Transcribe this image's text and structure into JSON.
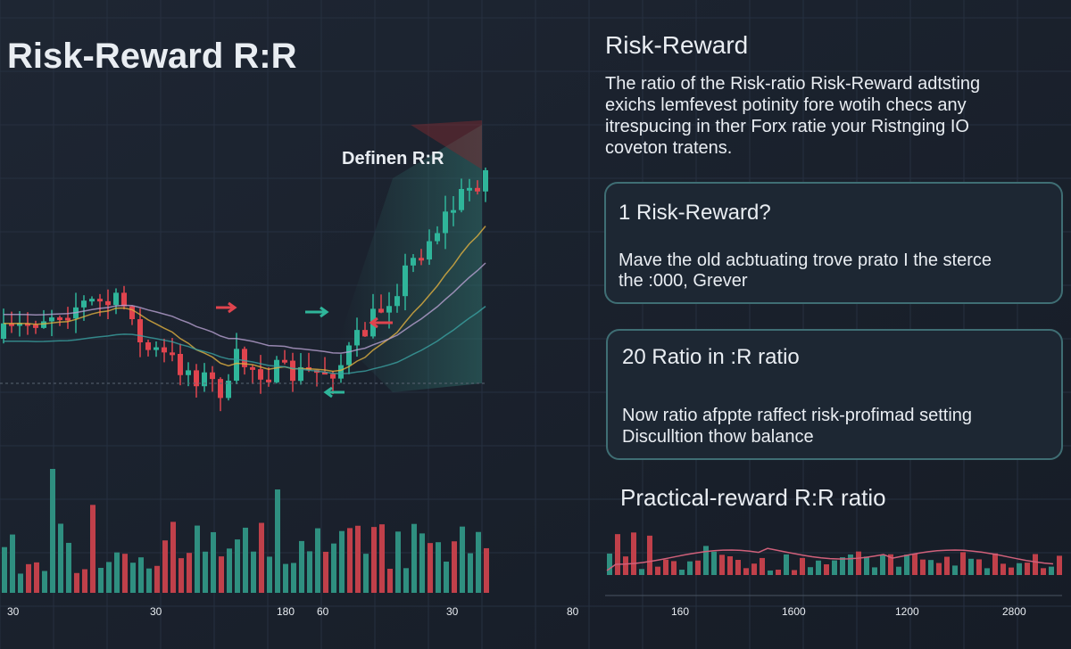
{
  "header": {
    "title": "Risk-Reward R:R"
  },
  "chart_panel": {
    "annotation": "Definen R:R",
    "axis_labels": [
      "30",
      "30",
      "180",
      "60",
      "30"
    ]
  },
  "info": {
    "heading": "Risk-Reward",
    "paragraph": [
      "The ratio of the Risk-ratio Risk-Reward adtsting",
      "exichs lemfevest potinity fore wotih checs any",
      "itrespucing in ther Forx ratie your Ristnging IO",
      "coveton tratens."
    ]
  },
  "cards": [
    {
      "title": "1 Risk-Reward?",
      "body": [
        "Mave the old acbtuating trove prato I the sterce",
        "the :000, Grever"
      ]
    },
    {
      "title": "20 Ratio in :R ratio",
      "body": [
        "Now ratio afppte raffect risk-profimad setting",
        "Disculltion thow balance"
      ]
    }
  ],
  "practical": {
    "heading": "Practical-reward R:R ratio",
    "axis_labels": [
      "80",
      "160",
      "1600",
      "1200",
      "2800"
    ]
  }
}
